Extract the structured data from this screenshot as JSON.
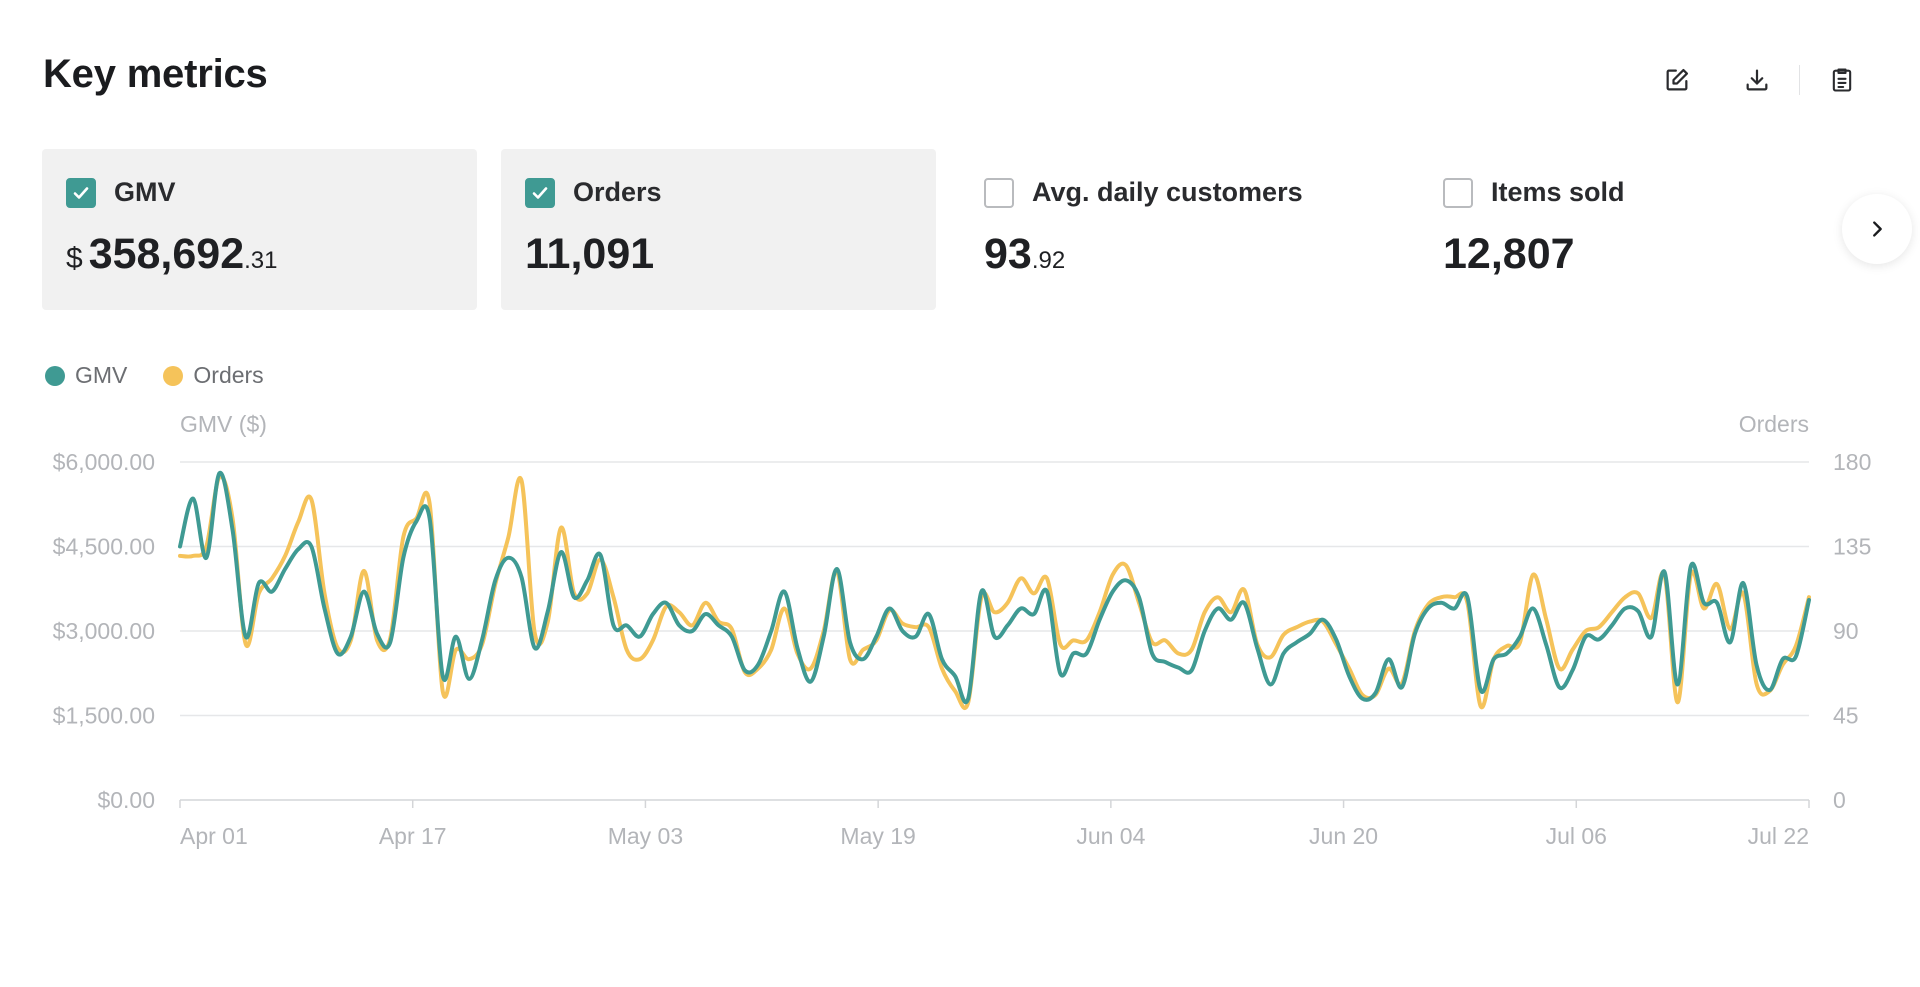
{
  "page": {
    "title": "Key metrics"
  },
  "toolbar": {
    "edit_icon": "edit-icon",
    "download_icon": "download-icon",
    "clipboard_icon": "clipboard-icon"
  },
  "metrics": [
    {
      "label": "GMV",
      "checked": true,
      "currency": "$",
      "value_main": "358,692",
      "value_decimal": ".31"
    },
    {
      "label": "Orders",
      "checked": true,
      "currency": "",
      "value_main": "11,091",
      "value_decimal": ""
    },
    {
      "label": "Avg. daily customers",
      "checked": false,
      "currency": "",
      "value_main": "93",
      "value_decimal": ".92"
    },
    {
      "label": "Items sold",
      "checked": false,
      "currency": "",
      "value_main": "12,807",
      "value_decimal": ""
    }
  ],
  "next_icon": "chevron-right-icon",
  "colors": {
    "gmv": "#3f9a93",
    "orders": "#f5c35a",
    "selected_card": "#f1f1f1",
    "grid": "#e6e7e9"
  },
  "chart_data": {
    "type": "line",
    "legend": [
      "GMV",
      "Orders"
    ],
    "y_left_label": "GMV ($)",
    "y_right_label": "Orders",
    "y_left_ticks": [
      "$0.00",
      "$1,500.00",
      "$3,000.00",
      "$4,500.00",
      "$6,000.00"
    ],
    "y_right_ticks": [
      "0",
      "45",
      "90",
      "135",
      "180"
    ],
    "y_left_range": [
      0,
      6000
    ],
    "y_right_range": [
      0,
      180
    ],
    "x_ticks": [
      "Apr 01",
      "Apr 17",
      "May 03",
      "May 19",
      "Jun 04",
      "Jun 20",
      "Jul 06",
      "Jul 22"
    ],
    "x_start": "Apr 01",
    "x_end": "Jul 22",
    "grid": true,
    "legend_position": "top-left",
    "series": [
      {
        "name": "GMV",
        "axis": "left",
        "values": [
          4500,
          5350,
          4300,
          5800,
          4800,
          2900,
          3850,
          3700,
          4100,
          4450,
          4500,
          3400,
          2600,
          2900,
          3700,
          2950,
          2800,
          4300,
          4950,
          5000,
          2200,
          2900,
          2150,
          2850,
          3900,
          4300,
          3950,
          2700,
          3350,
          4400,
          3600,
          3900,
          4350,
          3100,
          3100,
          2900,
          3300,
          3500,
          3100,
          3000,
          3300,
          3100,
          2900,
          2300,
          2400,
          3000,
          3700,
          2700,
          2100,
          2900,
          4100,
          2800,
          2500,
          2900,
          3400,
          3000,
          2900,
          3300,
          2500,
          2200,
          1800,
          3700,
          2900,
          3100,
          3400,
          3300,
          3700,
          2250,
          2600,
          2600,
          3200,
          3700,
          3900,
          3600,
          2600,
          2450,
          2350,
          2300,
          3000,
          3400,
          3200,
          3500,
          2700,
          2050,
          2600,
          2800,
          2950,
          3200,
          2850,
          2200,
          1800,
          1900,
          2500,
          2000,
          2950,
          3400,
          3500,
          3400,
          3600,
          1950,
          2500,
          2600,
          2900,
          3400,
          2750,
          2000,
          2300,
          2900,
          2850,
          3100,
          3400,
          3350,
          2900,
          4050,
          2050,
          4150,
          3500,
          3500,
          2800,
          3850,
          2400,
          1950,
          2500,
          2550,
          3550
        ]
      },
      {
        "name": "Orders",
        "axis": "right",
        "values": [
          130,
          130,
          135,
          172,
          150,
          83,
          110,
          118,
          130,
          148,
          160,
          110,
          81,
          85,
          122,
          85,
          86,
          140,
          150,
          158,
          58,
          80,
          75,
          83,
          115,
          140,
          170,
          89,
          95,
          145,
          110,
          110,
          128,
          108,
          80,
          75,
          85,
          103,
          100,
          93,
          105,
          95,
          91,
          68,
          70,
          80,
          102,
          78,
          70,
          90,
          122,
          75,
          80,
          85,
          101,
          94,
          92,
          92,
          70,
          58,
          52,
          108,
          100,
          105,
          118,
          110,
          118,
          83,
          85,
          85,
          100,
          120,
          125,
          105,
          84,
          85,
          78,
          80,
          100,
          108,
          100,
          112,
          83,
          76,
          88,
          92,
          95,
          95,
          83,
          70,
          56,
          56,
          70,
          62,
          90,
          104,
          108,
          108,
          105,
          50,
          75,
          82,
          84,
          120,
          96,
          70,
          80,
          90,
          92,
          100,
          108,
          110,
          97,
          120,
          52,
          120,
          102,
          115,
          91,
          110,
          62,
          58,
          72,
          82,
          108
        ]
      }
    ]
  }
}
